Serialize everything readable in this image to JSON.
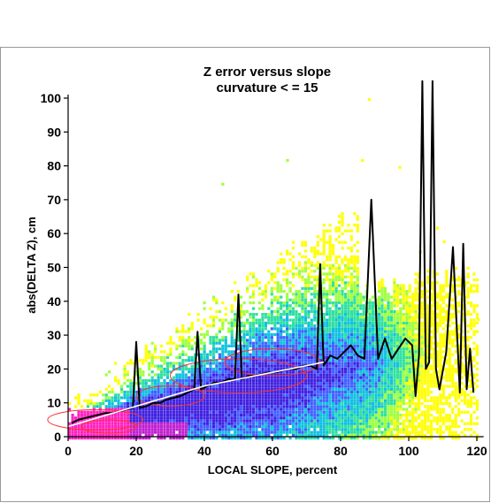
{
  "chart_data": {
    "type": "heatmap",
    "title": "Z error versus slope",
    "subtitle": "curvature < = 15",
    "xlabel": "LOCAL SLOPE, percent",
    "ylabel": "abs(DELTA Z), cm",
    "xlim": [
      0,
      122
    ],
    "ylim": [
      0,
      100
    ],
    "x_ticks": [
      0,
      20,
      40,
      60,
      80,
      100,
      120
    ],
    "y_ticks": [
      0,
      10,
      20,
      30,
      40,
      50,
      60,
      70,
      80,
      90,
      100
    ],
    "grid": false,
    "density_colors": [
      "#ffff00",
      "#a0ff40",
      "#30e0a0",
      "#10c0e0",
      "#4060ff",
      "#4020e0",
      "#c020d0",
      "#ff20c0"
    ],
    "contour_color": "#ff3030",
    "series": [
      {
        "style": "black line",
        "color": "#000000",
        "x": [
          1,
          3,
          5,
          7,
          9,
          11,
          13,
          15,
          17,
          19,
          20,
          21,
          23,
          25,
          27,
          29,
          31,
          33,
          35,
          37,
          38,
          39,
          41,
          43,
          45,
          47,
          49,
          50,
          51,
          53,
          55,
          57,
          59,
          61,
          63,
          65,
          67,
          69,
          71,
          73,
          74,
          75,
          77,
          79,
          81,
          83,
          85,
          87,
          89,
          91,
          93,
          95,
          97,
          99,
          101,
          102,
          103,
          104,
          105,
          106,
          107,
          108,
          109,
          111,
          113,
          115,
          116,
          117,
          118,
          119
        ],
        "y": [
          4,
          5,
          5.5,
          6,
          6.5,
          7,
          7,
          7.5,
          8,
          8.5,
          28,
          8.5,
          9,
          10,
          10,
          11,
          11.5,
          12,
          13,
          14,
          31,
          14,
          15,
          16,
          16,
          17,
          17,
          42,
          17,
          18,
          18,
          18.5,
          19,
          19,
          19.5,
          20,
          20,
          21,
          21,
          20,
          51,
          21,
          24,
          23,
          25,
          27,
          24,
          23,
          70,
          23,
          29,
          23,
          26,
          29,
          27,
          12,
          24,
          105,
          20,
          22,
          105,
          20,
          14,
          25,
          56,
          13,
          57,
          14,
          26,
          13
        ]
      },
      {
        "style": "white line",
        "color": "#ffffff",
        "x": [
          0,
          10,
          20,
          30,
          40,
          50,
          60,
          70,
          75
        ],
        "y": [
          3,
          6,
          9,
          12,
          15,
          17,
          19,
          21,
          22
        ]
      }
    ]
  }
}
